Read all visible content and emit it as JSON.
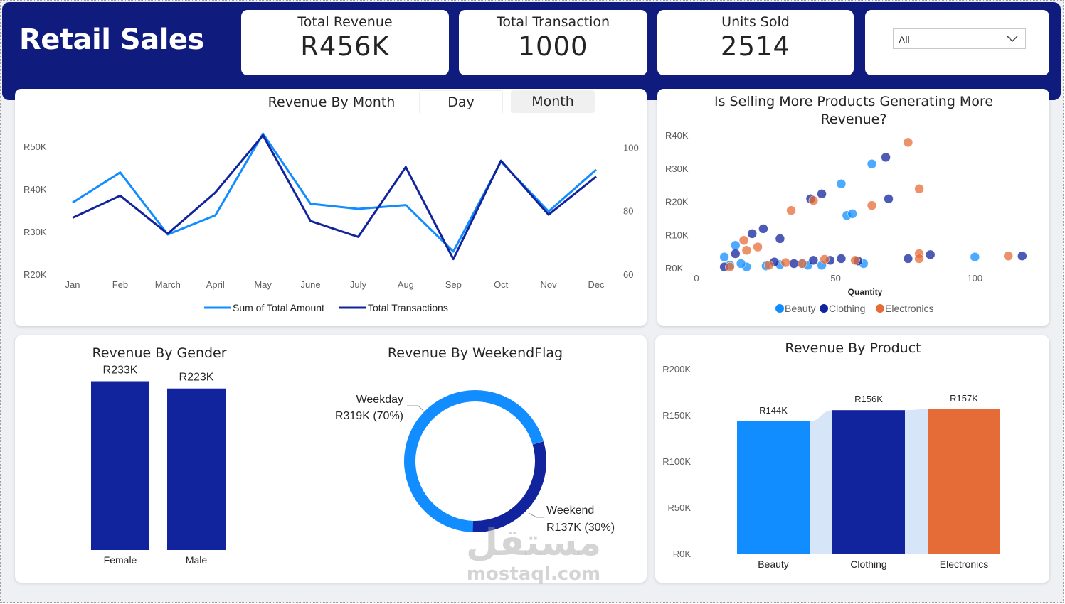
{
  "header": {
    "title": "Retail Sales"
  },
  "kpis": {
    "revenue": {
      "label": "Total Revenue",
      "value": "R456K"
    },
    "transactions": {
      "label": "Total Transaction",
      "value": "1000"
    },
    "units": {
      "label": "Units Sold",
      "value": "2514"
    }
  },
  "slicer": {
    "selected": "All",
    "icon": "chevron-down-icon"
  },
  "colors": {
    "navy": "#0f1c7e",
    "blue": "#118dff",
    "darkblue": "#12239e",
    "orange": "#e66c37"
  },
  "toggle": {
    "day": "Day",
    "month": "Month"
  },
  "chart_data": [
    {
      "id": "revenue-by-month",
      "type": "line",
      "title": "Revenue By Month",
      "categories": [
        "Jan",
        "Feb",
        "March",
        "April",
        "May",
        "June",
        "July",
        "Aug",
        "Sep",
        "Oct",
        "Nov",
        "Dec"
      ],
      "y_ticks": [
        "R20K",
        "R30K",
        "R40K",
        "R50K"
      ],
      "y2_ticks": [
        "60",
        "80",
        "100"
      ],
      "ylim": [
        20000,
        55000
      ],
      "y2lim": [
        60,
        107
      ],
      "series": [
        {
          "name": "Sum of Total Amount",
          "axis": "left",
          "color": "#118dff",
          "values": [
            36980,
            44060,
            29500,
            34000,
            53150,
            36700,
            35500,
            36400,
            25500,
            46600,
            34900,
            44700
          ]
        },
        {
          "name": "Total Transactions",
          "axis": "right",
          "color": "#12239e",
          "values": [
            78,
            85,
            73,
            86,
            104,
            77,
            72,
            94,
            65,
            96,
            79,
            91
          ]
        }
      ],
      "legend": "bottom"
    },
    {
      "id": "selling-vs-revenue",
      "type": "scatter",
      "title": "Is Selling More Products Generating More Revenue?",
      "xlabel": "Quantity",
      "x_ticks": [
        "0",
        "50",
        "100"
      ],
      "y_ticks": [
        "R0K",
        "R10K",
        "R20K",
        "R30K",
        "R40K"
      ],
      "xlim": [
        0,
        115
      ],
      "ylim": [
        0,
        40000
      ],
      "legend": "bottom",
      "series": [
        {
          "name": "Beauty",
          "color": "#118dff",
          "points": [
            [
              10,
              3500
            ],
            [
              14,
              7000
            ],
            [
              12,
              1000
            ],
            [
              18,
              500
            ],
            [
              25,
              800
            ],
            [
              30,
              1200
            ],
            [
              38,
              1500
            ],
            [
              40,
              1000
            ],
            [
              52,
              25500
            ],
            [
              54,
              16000
            ],
            [
              56,
              16500
            ],
            [
              63,
              31500
            ],
            [
              100,
              3500
            ],
            [
              60,
              1500
            ],
            [
              45,
              1000
            ],
            [
              16,
              1500
            ]
          ]
        },
        {
          "name": "Clothing",
          "color": "#12239e",
          "points": [
            [
              14,
              4500
            ],
            [
              20,
              10500
            ],
            [
              24,
              12000
            ],
            [
              30,
              9000
            ],
            [
              45,
              22500
            ],
            [
              41,
              21000
            ],
            [
              68,
              33500
            ],
            [
              69,
              21000
            ],
            [
              76,
              3000
            ],
            [
              84,
              4200
            ],
            [
              117,
              3800
            ],
            [
              42,
              2500
            ],
            [
              48,
              2500
            ],
            [
              52,
              3000
            ],
            [
              58,
              2300
            ],
            [
              35,
              1500
            ],
            [
              28,
              2000
            ],
            [
              10,
              500
            ]
          ]
        },
        {
          "name": "Electronics",
          "color": "#e66c37",
          "points": [
            [
              17,
              8500
            ],
            [
              18,
              5500
            ],
            [
              22,
              6500
            ],
            [
              34,
              17500
            ],
            [
              42,
              20500
            ],
            [
              63,
              19000
            ],
            [
              76,
              38000
            ],
            [
              80,
              24000
            ],
            [
              80,
              4500
            ],
            [
              80,
              3000
            ],
            [
              112,
              3800
            ],
            [
              46,
              2800
            ],
            [
              57,
              2500
            ],
            [
              12,
              500
            ],
            [
              26,
              1000
            ],
            [
              32,
              1800
            ],
            [
              38,
              1500
            ]
          ]
        }
      ]
    },
    {
      "id": "revenue-by-gender",
      "type": "bar",
      "title": "Revenue By Gender",
      "categories": [
        "Female",
        "Male"
      ],
      "values": [
        233000,
        223000
      ],
      "labels": [
        "R233K",
        "R223K"
      ],
      "ylim": [
        0,
        260000
      ],
      "color": "#12239e"
    },
    {
      "id": "revenue-by-weekendflag",
      "type": "pie",
      "title": "Revenue By WeekendFlag",
      "slices": [
        {
          "name": "Weekday",
          "label": "R319K (70%)",
          "value": 319000,
          "color": "#118dff"
        },
        {
          "name": "Weekend",
          "label": "R137K (30%)",
          "value": 137000,
          "color": "#12239e"
        }
      ]
    },
    {
      "id": "revenue-by-product",
      "type": "bar",
      "title": "Revenue By Product",
      "categories": [
        "Beauty",
        "Clothing",
        "Electronics"
      ],
      "values": [
        144000,
        156000,
        157000
      ],
      "labels": [
        "R144K",
        "R156K",
        "R157K"
      ],
      "colors": [
        "#118dff",
        "#12239e",
        "#e66c37"
      ],
      "y_ticks": [
        "R0K",
        "R50K",
        "R100K",
        "R150K",
        "R200K"
      ],
      "ylim": [
        0,
        200000
      ]
    }
  ],
  "watermark": {
    "arabic": "مستقل",
    "latin": "mostaql.com"
  }
}
